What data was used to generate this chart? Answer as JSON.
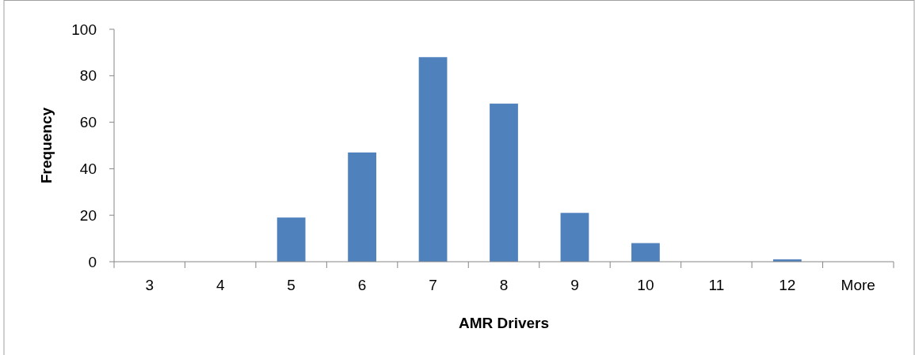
{
  "chart_data": {
    "type": "bar",
    "xlabel": "AMR Drivers",
    "ylabel": "Frequency",
    "categories": [
      "3",
      "4",
      "5",
      "6",
      "7",
      "8",
      "9",
      "10",
      "11",
      "12",
      "More"
    ],
    "values": [
      0,
      0,
      19,
      47,
      88,
      68,
      21,
      8,
      0,
      1,
      0
    ],
    "color": "#4f81bd",
    "ylim": [
      0,
      100
    ],
    "yticks": [
      0,
      20,
      40,
      60,
      80,
      100
    ],
    "grid": false
  }
}
